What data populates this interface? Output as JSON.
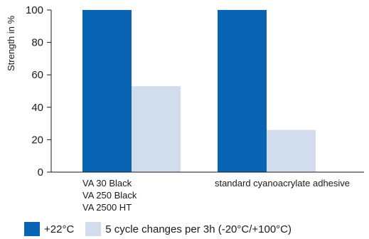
{
  "chart_data": {
    "type": "bar",
    "ylabel": "Strength in %",
    "ylim": [
      0,
      100
    ],
    "yticks": [
      0,
      20,
      40,
      60,
      80,
      100
    ],
    "grid": false,
    "categories": [
      [
        "VA 30 Black",
        "VA 250 Black",
        "VA 2500 HT"
      ],
      [
        "standard cyanoacrylate adhesive"
      ]
    ],
    "series": [
      {
        "name": "+22°C",
        "color": "#0a64b4",
        "values": [
          100,
          100
        ]
      },
      {
        "name": "5 cycle changes per 3h (-20°C/+100°C)",
        "color": "#d1dcec",
        "values": [
          53,
          26
        ]
      }
    ],
    "legend_position": "bottom-left"
  }
}
